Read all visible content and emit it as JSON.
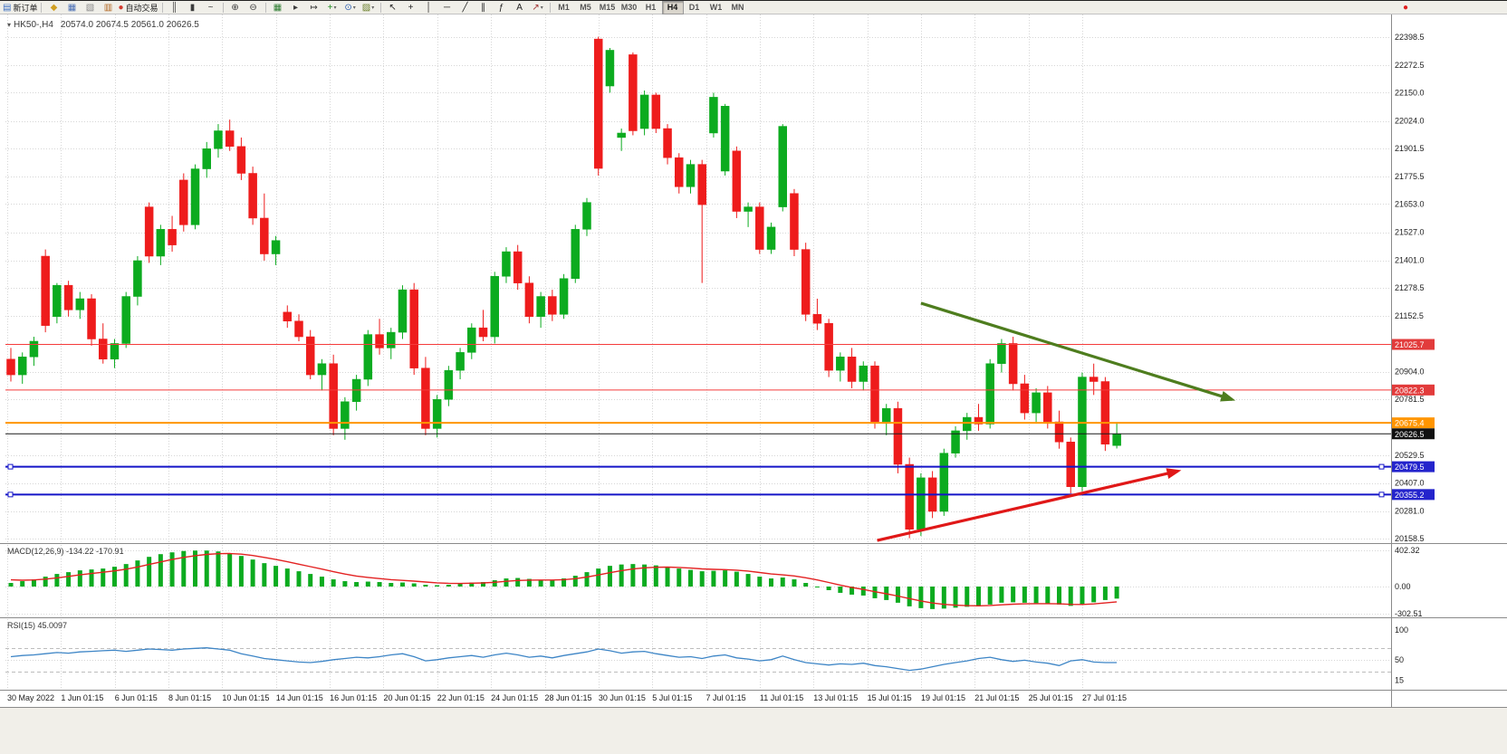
{
  "toolbar": {
    "timeframes": [
      "M1",
      "M5",
      "M15",
      "M30",
      "H1",
      "H4",
      "D1",
      "W1",
      "MN"
    ],
    "active_timeframe": "H4",
    "items": [
      {
        "type": "btn",
        "name": "new-order-button",
        "icon": "new-order-icon",
        "glyph": "▤",
        "color": "#3b6fc4",
        "label": "新订单"
      },
      {
        "type": "sep"
      },
      {
        "type": "btn",
        "name": "profiles-icon",
        "glyph": "◆",
        "color": "#d1a023"
      },
      {
        "type": "btn",
        "name": "market-watch-icon",
        "glyph": "▦",
        "color": "#4a6fb5"
      },
      {
        "type": "btn",
        "name": "navigator-icon",
        "glyph": "▧",
        "color": "#888888"
      },
      {
        "type": "btn",
        "name": "terminal-icon",
        "glyph": "▥",
        "color": "#b0651f"
      },
      {
        "type": "btn",
        "name": "auto-trading-button",
        "icon": "auto-trading-icon",
        "glyph": "●",
        "color": "#d23a2e",
        "label": "自动交易"
      },
      {
        "type": "sep"
      },
      {
        "type": "btn",
        "name": "bar-chart-mode-icon",
        "glyph": "║",
        "color": "#3c3c3c"
      },
      {
        "type": "btn",
        "name": "candlestick-mode-icon",
        "glyph": "▮",
        "color": "#3c3c3c"
      },
      {
        "type": "btn",
        "name": "line-chart-mode-icon",
        "glyph": "~",
        "color": "#3c3c3c"
      },
      {
        "type": "sep"
      },
      {
        "type": "btn",
        "name": "zoom-in-icon",
        "glyph": "⊕",
        "color": "#3c3c3c"
      },
      {
        "type": "btn",
        "name": "zoom-out-icon",
        "glyph": "⊖",
        "color": "#3c3c3c"
      },
      {
        "type": "sep"
      },
      {
        "type": "btn",
        "name": "tile-windows-icon",
        "glyph": "▦",
        "color": "#2e7d32"
      },
      {
        "type": "btn",
        "name": "auto-scroll-icon",
        "glyph": "▸",
        "color": "#3c3c3c"
      },
      {
        "type": "btn",
        "name": "chart-shift-icon",
        "glyph": "↦",
        "color": "#3c3c3c"
      },
      {
        "type": "btn",
        "name": "indicators-icon",
        "glyph": "+",
        "color": "#1c8c1c",
        "drop": true
      },
      {
        "type": "btn",
        "name": "periods-icon",
        "glyph": "⊙",
        "color": "#2a5db0",
        "drop": true
      },
      {
        "type": "btn",
        "name": "template-icon",
        "glyph": "▨",
        "color": "#6a7f2a",
        "drop": true
      },
      {
        "type": "sep"
      },
      {
        "type": "btn",
        "name": "cursor-icon",
        "glyph": "↖",
        "color": "#222222"
      },
      {
        "type": "btn",
        "name": "crosshair-icon",
        "glyph": "+",
        "color": "#222222"
      },
      {
        "type": "btn",
        "name": "vertical-line-icon",
        "glyph": "│",
        "color": "#222222"
      },
      {
        "type": "btn",
        "name": "horizontal-line-icon",
        "glyph": "─",
        "color": "#222222"
      },
      {
        "type": "btn",
        "name": "trendline-icon",
        "glyph": "╱",
        "color": "#222222"
      },
      {
        "type": "btn",
        "name": "channel-icon",
        "glyph": "∥",
        "color": "#222222"
      },
      {
        "type": "btn",
        "name": "fibonacci-icon",
        "glyph": "ƒ",
        "color": "#222222"
      },
      {
        "type": "btn",
        "name": "text-icon",
        "glyph": "A",
        "color": "#222222"
      },
      {
        "type": "btn",
        "name": "arrows-tool-icon",
        "glyph": "↗",
        "color": "#a03030",
        "drop": true
      },
      {
        "type": "sep"
      },
      {
        "type": "tf"
      },
      {
        "type": "spacer"
      },
      {
        "type": "btn",
        "name": "status-red-icon",
        "glyph": "●",
        "color": "#e02020"
      },
      {
        "type": "pad"
      }
    ]
  },
  "chart_data": {
    "type": "candlestick",
    "title": "HK50-,H4",
    "ohlc_display": "20574.0 20674.5 20561.0 20626.5",
    "y_axis_labels": [
      "22398.5",
      "22272.5",
      "22150.0",
      "22024.0",
      "21901.5",
      "21775.5",
      "21653.0",
      "21527.0",
      "21401.0",
      "21278.5",
      "21152.5",
      "20904.0",
      "20781.5",
      "20529.5",
      "20407.0",
      "20281.0",
      "20158.5"
    ],
    "x_axis_labels": [
      "30 May 2022",
      "1 Jun 01:15",
      "6 Jun 01:15",
      "8 Jun 01:15",
      "10 Jun 01:15",
      "14 Jun 01:15",
      "16 Jun 01:15",
      "20 Jun 01:15",
      "22 Jun 01:15",
      "24 Jun 01:15",
      "28 Jun 01:15",
      "30 Jun 01:15",
      "5 Jul 01:15",
      "7 Jul 01:15",
      "11 Jul 01:15",
      "13 Jul 01:15",
      "15 Jul 01:15",
      "19 Jul 01:15",
      "21 Jul 01:15",
      "25 Jul 01:15",
      "27 Jul 01:15"
    ],
    "price_lines": [
      {
        "price": 21025.7,
        "label": "21025.7",
        "color": "#f53b3b",
        "badge": "#e23b3b",
        "width": 1,
        "name": "resistance-line-21025"
      },
      {
        "price": 20822.3,
        "label": "20822.3",
        "color": "#f53b3b",
        "badge": "#e23b3b",
        "width": 1,
        "name": "resistance-line-20822"
      },
      {
        "price": 20675.4,
        "label": "20675.4",
        "color": "#ff9500",
        "badge": "#ff9500",
        "width": 2,
        "name": "orange-level-line"
      },
      {
        "price": 20626.5,
        "label": "20626.5",
        "color": "#1a1a1a",
        "badge": "#111111",
        "width": 1,
        "name": "current-price-line"
      },
      {
        "price": 20479.5,
        "label": "20479.5",
        "color": "#1515c8",
        "badge": "#2424cc",
        "width": 2,
        "handles": true,
        "name": "support-line-20479"
      },
      {
        "price": 20355.2,
        "label": "20355.2",
        "color": "#1515c8",
        "badge": "#2424cc",
        "width": 2,
        "handles": true,
        "name": "support-line-20355"
      }
    ],
    "arrows": [
      {
        "name": "down-trend-arrow",
        "color": "#4e7d1e",
        "from_bar": 79,
        "from_price": 21210,
        "to_bar": 106,
        "to_price": 20780
      },
      {
        "name": "up-trend-arrow",
        "color": "#e01818",
        "from_bar": 75.2,
        "from_price": 20150,
        "to_bar": 101.3,
        "to_price": 20460
      }
    ],
    "candles": [
      [
        20960,
        21010,
        20860,
        20890
      ],
      [
        20890,
        20990,
        20850,
        20970
      ],
      [
        20970,
        21060,
        20930,
        21040
      ],
      [
        21420,
        21450,
        21080,
        21110
      ],
      [
        21150,
        21300,
        21120,
        21290
      ],
      [
        21290,
        21310,
        21150,
        21180
      ],
      [
        21180,
        21260,
        21140,
        21230
      ],
      [
        21230,
        21250,
        21020,
        21050
      ],
      [
        21050,
        21120,
        20940,
        20960
      ],
      [
        20960,
        21050,
        20920,
        21030
      ],
      [
        21030,
        21260,
        21010,
        21240
      ],
      [
        21240,
        21420,
        21200,
        21400
      ],
      [
        21640,
        21660,
        21390,
        21420
      ],
      [
        21420,
        21560,
        21380,
        21540
      ],
      [
        21540,
        21600,
        21440,
        21470
      ],
      [
        21760,
        21790,
        21530,
        21560
      ],
      [
        21560,
        21830,
        21540,
        21810
      ],
      [
        21810,
        21930,
        21770,
        21900
      ],
      [
        21900,
        22010,
        21860,
        21980
      ],
      [
        21980,
        22030,
        21890,
        21910
      ],
      [
        21910,
        21950,
        21760,
        21790
      ],
      [
        21790,
        21820,
        21560,
        21590
      ],
      [
        21590,
        21700,
        21400,
        21430
      ],
      [
        21430,
        21510,
        21380,
        21490
      ],
      [
        21170,
        21200,
        21100,
        21130
      ],
      [
        21130,
        21160,
        21040,
        21060
      ],
      [
        21060,
        21090,
        20870,
        20890
      ],
      [
        20890,
        20960,
        20820,
        20940
      ],
      [
        20940,
        20980,
        20620,
        20650
      ],
      [
        20650,
        20790,
        20600,
        20770
      ],
      [
        20770,
        20890,
        20730,
        20870
      ],
      [
        20870,
        21090,
        20840,
        21070
      ],
      [
        21070,
        21140,
        20980,
        21010
      ],
      [
        21010,
        21100,
        20960,
        21080
      ],
      [
        21080,
        21290,
        21050,
        21270
      ],
      [
        21270,
        21300,
        20890,
        20920
      ],
      [
        20920,
        20970,
        20620,
        20650
      ],
      [
        20650,
        20800,
        20610,
        20780
      ],
      [
        20780,
        20930,
        20750,
        20910
      ],
      [
        20910,
        21010,
        20870,
        20990
      ],
      [
        20990,
        21120,
        20960,
        21100
      ],
      [
        21100,
        21180,
        21040,
        21060
      ],
      [
        21060,
        21350,
        21030,
        21330
      ],
      [
        21330,
        21460,
        21300,
        21440
      ],
      [
        21440,
        21470,
        21270,
        21300
      ],
      [
        21300,
        21330,
        21120,
        21150
      ],
      [
        21150,
        21260,
        21100,
        21240
      ],
      [
        21240,
        21270,
        21130,
        21160
      ],
      [
        21160,
        21340,
        21140,
        21320
      ],
      [
        21320,
        21560,
        21300,
        21540
      ],
      [
        21540,
        21680,
        21510,
        21660
      ],
      [
        22390,
        22400,
        21780,
        21812
      ],
      [
        22180,
        22350,
        22150,
        22340
      ],
      [
        21950,
        21990,
        21890,
        21970
      ],
      [
        22320,
        22330,
        21960,
        21980
      ],
      [
        21990,
        22160,
        21960,
        22140
      ],
      [
        22140,
        22150,
        21970,
        21990
      ],
      [
        21990,
        22010,
        21830,
        21860
      ],
      [
        21860,
        21880,
        21700,
        21730
      ],
      [
        21730,
        21850,
        21700,
        21830
      ],
      [
        21830,
        21850,
        21300,
        21650
      ],
      [
        21970,
        22150,
        21950,
        22130
      ],
      [
        21800,
        22100,
        21780,
        22090
      ],
      [
        21890,
        21910,
        21590,
        21620
      ],
      [
        21620,
        21660,
        21550,
        21640
      ],
      [
        21640,
        21660,
        21430,
        21450
      ],
      [
        21450,
        21570,
        21430,
        21550
      ],
      [
        21640,
        22010,
        21620,
        22000
      ],
      [
        21700,
        21720,
        21420,
        21450
      ],
      [
        21450,
        21480,
        21130,
        21160
      ],
      [
        21160,
        21230,
        21090,
        21120
      ],
      [
        21120,
        21140,
        20880,
        20910
      ],
      [
        20910,
        20990,
        20860,
        20970
      ],
      [
        20970,
        21010,
        20830,
        20860
      ],
      [
        20860,
        20950,
        20820,
        20930
      ],
      [
        20930,
        20950,
        20650,
        20680
      ],
      [
        20680,
        20760,
        20620,
        20740
      ],
      [
        20740,
        20770,
        20450,
        20490
      ],
      [
        20490,
        20520,
        20160,
        20200
      ],
      [
        20200,
        20450,
        20170,
        20430
      ],
      [
        20430,
        20460,
        20250,
        20280
      ],
      [
        20280,
        20560,
        20260,
        20540
      ],
      [
        20540,
        20660,
        20520,
        20640
      ],
      [
        20640,
        20720,
        20600,
        20700
      ],
      [
        20700,
        20760,
        20640,
        20670
      ],
      [
        20670,
        20960,
        20650,
        20940
      ],
      [
        20940,
        21050,
        20900,
        21030
      ],
      [
        21030,
        21060,
        20820,
        20850
      ],
      [
        20850,
        20890,
        20690,
        20720
      ],
      [
        20720,
        20830,
        20680,
        20810
      ],
      [
        20810,
        20840,
        20650,
        20680
      ],
      [
        20680,
        20730,
        20560,
        20590
      ],
      [
        20590,
        20610,
        20360,
        20390
      ],
      [
        20390,
        20900,
        20370,
        20880
      ],
      [
        20880,
        20940,
        20800,
        20860
      ],
      [
        20860,
        20880,
        20550,
        20580
      ],
      [
        20574,
        20674.5,
        20561,
        20626.5
      ]
    ],
    "macd": {
      "label": "MACD(12,26,9) -134.22 -170.91",
      "scale_labels": [
        "402.32",
        "0.00",
        "-302.51"
      ],
      "scale_values": [
        402.32,
        0,
        -302.51
      ],
      "histogram": [
        40,
        60,
        80,
        110,
        140,
        160,
        180,
        190,
        200,
        220,
        250,
        290,
        330,
        360,
        380,
        395,
        400,
        400,
        390,
        370,
        340,
        300,
        260,
        230,
        200,
        170,
        140,
        110,
        80,
        60,
        50,
        55,
        50,
        40,
        45,
        35,
        20,
        15,
        20,
        30,
        45,
        50,
        70,
        90,
        95,
        85,
        75,
        70,
        90,
        120,
        160,
        200,
        230,
        245,
        250,
        245,
        235,
        220,
        200,
        185,
        170,
        175,
        180,
        165,
        140,
        110,
        90,
        100,
        80,
        40,
        0,
        -40,
        -70,
        -90,
        -100,
        -130,
        -150,
        -180,
        -220,
        -240,
        -250,
        -245,
        -235,
        -225,
        -220,
        -200,
        -180,
        -175,
        -180,
        -185,
        -190,
        -200,
        -215,
        -200,
        -175,
        -150,
        -134
      ]
    },
    "rsi": {
      "label": "RSI(15) 45.0097",
      "scale_labels": [
        "100",
        "50",
        "15"
      ],
      "scale_values": [
        100,
        50,
        15
      ],
      "levels": [
        70,
        30
      ],
      "values": [
        55,
        57,
        58,
        60,
        62,
        61,
        63,
        64,
        65,
        66,
        64,
        66,
        68,
        67,
        66,
        68,
        69,
        70,
        68,
        66,
        60,
        56,
        52,
        50,
        48,
        46,
        45,
        47,
        50,
        52,
        54,
        53,
        55,
        58,
        60,
        55,
        48,
        50,
        53,
        55,
        57,
        54,
        58,
        61,
        58,
        54,
        56,
        53,
        57,
        60,
        63,
        68,
        65,
        61,
        63,
        64,
        60,
        57,
        54,
        55,
        52,
        56,
        58,
        53,
        51,
        48,
        50,
        56,
        50,
        45,
        43,
        41,
        43,
        42,
        44,
        40,
        38,
        35,
        32,
        34,
        38,
        42,
        45,
        48,
        52,
        54,
        50,
        47,
        49,
        46,
        44,
        40,
        48,
        50,
        46,
        45,
        45
      ]
    },
    "colors": {
      "bull": "#0cab1f",
      "bear": "#ee1c1c",
      "macd_histogram": "#0cab1f",
      "macd_signal": "#e32222",
      "rsi_line": "#3d85c6",
      "grid": "#d6d6d6"
    }
  }
}
